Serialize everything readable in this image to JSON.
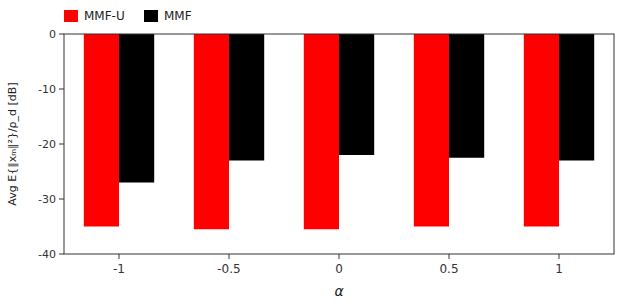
{
  "chart_data": {
    "type": "bar",
    "categories": [
      "-1",
      "-0.5",
      "0",
      "0.5",
      "1"
    ],
    "series": [
      {
        "name": "MMF-U",
        "color": "#FF0000",
        "values": [
          -35.0,
          -35.5,
          -35.5,
          -35.0,
          -35.0
        ]
      },
      {
        "name": "MMF",
        "color": "#000000",
        "values": [
          -27.0,
          -23.0,
          -22.0,
          -22.5,
          -23.0
        ]
      }
    ],
    "xlabel": "α",
    "ylabel": "Avg E{‖xₘ‖²}/ρ_d [dB]",
    "ylim": [
      -40,
      0
    ],
    "yticks": [
      0,
      -10,
      -20,
      -30,
      -40
    ],
    "legend": "upper left"
  }
}
